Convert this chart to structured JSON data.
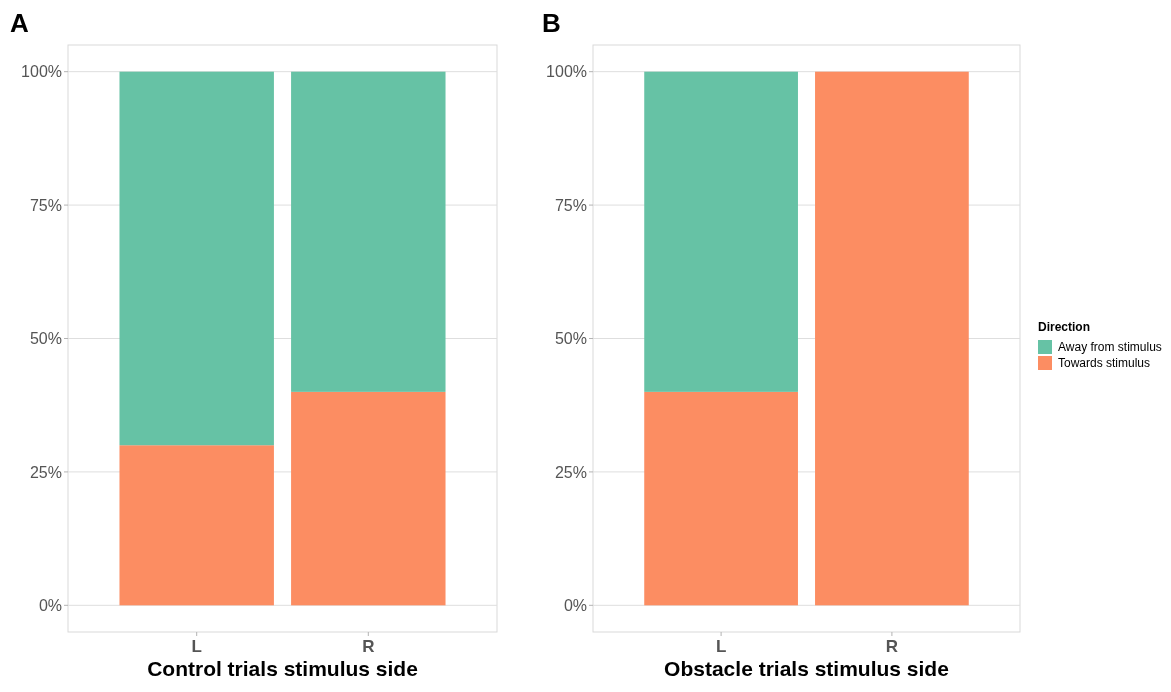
{
  "chart_data": [
    {
      "type": "bar",
      "title": "A",
      "xlabel": "Control trials stimulus side",
      "categories": [
        "L",
        "R"
      ],
      "stacked": true,
      "ylim": [
        -5,
        105
      ],
      "yticks": [
        {
          "value": 0,
          "label": "0%"
        },
        {
          "value": 25,
          "label": "25%"
        },
        {
          "value": 50,
          "label": "50%"
        },
        {
          "value": 75,
          "label": "75%"
        },
        {
          "value": 100,
          "label": "100%"
        }
      ],
      "grid": "y",
      "legend": false,
      "series": [
        {
          "color": "#fc8d62",
          "values": [
            30,
            40
          ]
        },
        {
          "color": "#66c2a5",
          "values": [
            70,
            60
          ]
        }
      ]
    },
    {
      "type": "bar",
      "title": "B",
      "xlabel": "Obstacle trials stimulus side",
      "categories": [
        "L",
        "R"
      ],
      "stacked": true,
      "ylim": [
        -5,
        105
      ],
      "yticks": [
        {
          "value": 0,
          "label": "0%"
        },
        {
          "value": 25,
          "label": "25%"
        },
        {
          "value": 50,
          "label": "50%"
        },
        {
          "value": 75,
          "label": "75%"
        },
        {
          "value": 100,
          "label": "100%"
        }
      ],
      "grid": "y",
      "legend": "right",
      "legend_title": "Direction",
      "series": [
        {
          "name": "Towards stimulus",
          "color": "#fc8d62",
          "values": [
            40,
            100
          ]
        },
        {
          "name": "Away from stimulus",
          "color": "#66c2a5",
          "values": [
            60,
            0
          ]
        }
      ]
    }
  ]
}
